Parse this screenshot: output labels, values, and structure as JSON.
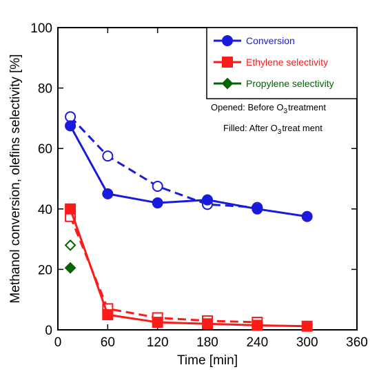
{
  "chart_data": {
    "type": "line",
    "xlabel": "Time [min]",
    "ylabel": "Methanol conversion, olefins selectivity [%]",
    "xlim": [
      0,
      360
    ],
    "ylim": [
      0,
      100
    ],
    "xticks": [
      0,
      60,
      120,
      180,
      240,
      300,
      360
    ],
    "yticks": [
      0,
      20,
      40,
      60,
      80,
      100
    ],
    "grid": false,
    "legend_position": "top-right",
    "series": [
      {
        "name": "Conversion",
        "color": "#1a1adf",
        "marker": "circle",
        "before": {
          "x": [
            15,
            60,
            120,
            180,
            240
          ],
          "y": [
            70.5,
            57.5,
            47.5,
            41.5,
            40.5
          ]
        },
        "after": {
          "x": [
            15,
            60,
            120,
            180,
            240,
            300
          ],
          "y": [
            67.5,
            45,
            42,
            43,
            40,
            37.5
          ]
        }
      },
      {
        "name": "Ethylene selectivity",
        "color": "#ff1a1a",
        "marker": "square",
        "before": {
          "x": [
            15,
            60,
            120,
            180,
            240
          ],
          "y": [
            37.5,
            7,
            4,
            3,
            2.5
          ]
        },
        "after": {
          "x": [
            15,
            60,
            120,
            180,
            240,
            300
          ],
          "y": [
            40,
            5,
            2.5,
            2,
            1.5,
            1.2
          ]
        }
      },
      {
        "name": "Propylene selectivity",
        "color": "#006400",
        "marker": "diamond",
        "before": {
          "x": [
            15
          ],
          "y": [
            28
          ]
        },
        "after": {
          "x": [
            15
          ],
          "y": [
            20.5
          ]
        }
      }
    ],
    "annotations": [
      {
        "prefix": "Opened: Before O",
        "sub": "3",
        "suffix": "treatment"
      },
      {
        "prefix": "Filled: After O",
        "sub": "3",
        "suffix": "treat ment"
      }
    ]
  }
}
